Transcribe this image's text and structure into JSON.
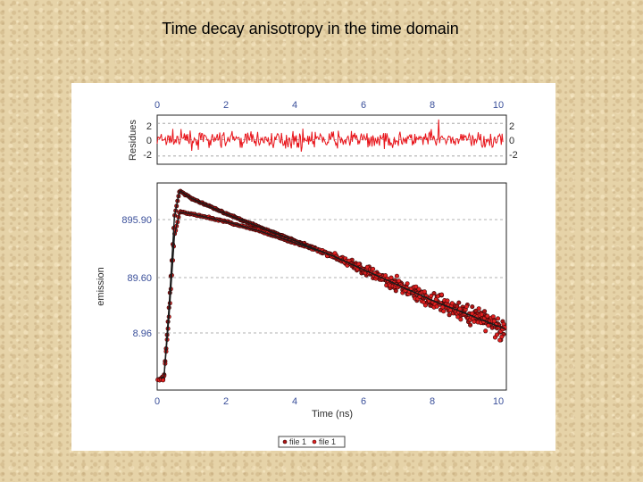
{
  "slide": {
    "title": "Time decay anisotropy in the time domain"
  },
  "chart_data": [
    {
      "type": "line",
      "panel": "residuals",
      "ylabel": "Residues",
      "x_ticks": [
        "0",
        "2",
        "4",
        "6",
        "8",
        "10"
      ],
      "y_ticks": [
        "2",
        "0",
        "-2"
      ],
      "xlim": [
        0,
        10.1
      ],
      "ylim": [
        -3,
        3
      ],
      "grid": true,
      "series": [
        {
          "color": "#e8141a",
          "noise_amplitude": 1.0,
          "x_range": [
            0,
            10
          ]
        }
      ]
    },
    {
      "type": "scatter",
      "panel": "decay",
      "ylabel": "emission",
      "xlabel": "Time (ns)",
      "x_ticks": [
        "0",
        "2",
        "4",
        "6",
        "8",
        "10"
      ],
      "y_ticks": [
        "895.90",
        "89.60",
        "8.96"
      ],
      "xlim": [
        0,
        10.1
      ],
      "ylim": [
        -0.05,
        1.02
      ],
      "grid": true,
      "series": [
        {
          "name": "file 1",
          "marker_color": "#b01515",
          "edge_color": "#2a0505",
          "fit_color": "#1a1a1a",
          "peak": [
            0.65,
            0.98
          ],
          "points": [
            [
              0,
              0.0
            ],
            [
              0.2,
              0.02
            ],
            [
              0.35,
              0.4
            ],
            [
              0.5,
              0.85
            ],
            [
              0.65,
              0.98
            ],
            [
              1.0,
              0.94
            ],
            [
              2.0,
              0.86
            ],
            [
              3.0,
              0.79
            ],
            [
              4.0,
              0.72
            ],
            [
              5.0,
              0.65
            ],
            [
              6.0,
              0.57
            ],
            [
              7.0,
              0.49
            ],
            [
              8.0,
              0.41
            ],
            [
              9.0,
              0.34
            ],
            [
              10.0,
              0.27
            ]
          ]
        },
        {
          "name": "file 1",
          "marker_color": "#e02020",
          "edge_color": "#3a0808",
          "fit_color": "#1a1a1a",
          "peak": [
            0.65,
            0.87
          ],
          "points": [
            [
              0,
              0.0
            ],
            [
              0.2,
              0.02
            ],
            [
              0.35,
              0.35
            ],
            [
              0.5,
              0.75
            ],
            [
              0.65,
              0.87
            ],
            [
              1.0,
              0.86
            ],
            [
              2.0,
              0.82
            ],
            [
              3.0,
              0.77
            ],
            [
              4.0,
              0.71
            ],
            [
              5.0,
              0.65
            ],
            [
              6.0,
              0.57
            ],
            [
              7.0,
              0.49
            ],
            [
              8.0,
              0.41
            ],
            [
              9.0,
              0.34
            ],
            [
              10.0,
              0.27
            ]
          ]
        }
      ],
      "legend": {
        "placement": "bottom-center",
        "items": [
          "file 1",
          "file 1"
        ]
      }
    }
  ]
}
